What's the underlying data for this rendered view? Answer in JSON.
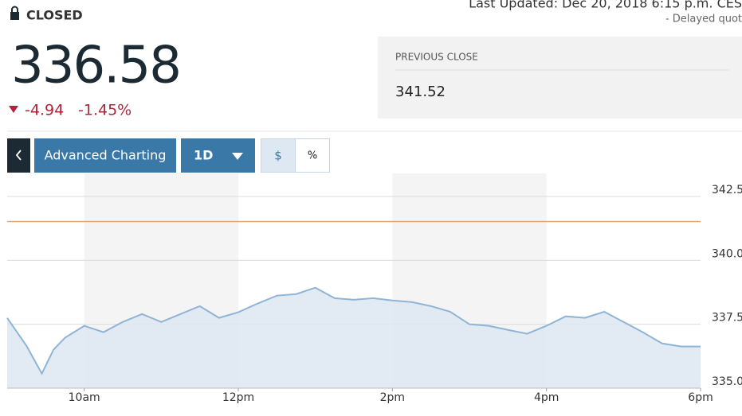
{
  "status": "CLOSED",
  "last_updated": "Last Updated: Dec 20, 2018 6:15 p.m. CES",
  "delay_note": "-  Delayed quot",
  "price": "336.58",
  "change": "-4.94",
  "change_percent": "-1.45%",
  "previous_close": {
    "label": "PREVIOUS CLOSE",
    "value": 341.52
  },
  "controls": {
    "advanced": "Advanced Charting",
    "range": "1D",
    "dollar": "$",
    "percent": "%"
  },
  "chart_data": {
    "type": "area",
    "color": "#8fb4d6",
    "fill": "#dde8f2",
    "reference_color": "#e8a273",
    "x": [
      9,
      9.25,
      9.45,
      9.6,
      9.75,
      10,
      10.25,
      10.5,
      10.75,
      11,
      11.25,
      11.5,
      11.75,
      12,
      12.25,
      12.5,
      12.75,
      13,
      13.25,
      13.5,
      13.75,
      14,
      14.25,
      14.5,
      14.75,
      15,
      15.25,
      15.5,
      15.75,
      16,
      16.25,
      16.5,
      16.75,
      17,
      17.25,
      17.5,
      17.75,
      18
    ],
    "values": [
      337.75,
      336.66,
      335.57,
      336.5,
      336.97,
      337.44,
      337.19,
      337.59,
      337.9,
      337.59,
      337.9,
      338.21,
      337.75,
      337.97,
      338.31,
      338.62,
      338.68,
      338.93,
      338.52,
      338.46,
      338.52,
      338.43,
      338.37,
      338.21,
      337.99,
      337.5,
      337.44,
      337.28,
      337.13,
      337.44,
      337.81,
      337.75,
      337.99,
      337.59,
      337.19,
      336.75,
      336.63,
      336.63
    ],
    "xlim": [
      9,
      18
    ],
    "xticks": [
      {
        "value": 10,
        "label": "10am"
      },
      {
        "value": 12,
        "label": "12pm"
      },
      {
        "value": 14,
        "label": "2pm"
      },
      {
        "value": 16,
        "label": "4pm"
      },
      {
        "value": 18,
        "label": "6pm"
      }
    ],
    "ylim": [
      335,
      342.5
    ],
    "yticks": [
      342.5,
      {
        "value": 340,
        "label": "340.0"
      },
      337.5,
      {
        "value": 335,
        "label": "335.0"
      }
    ],
    "grid": true
  }
}
